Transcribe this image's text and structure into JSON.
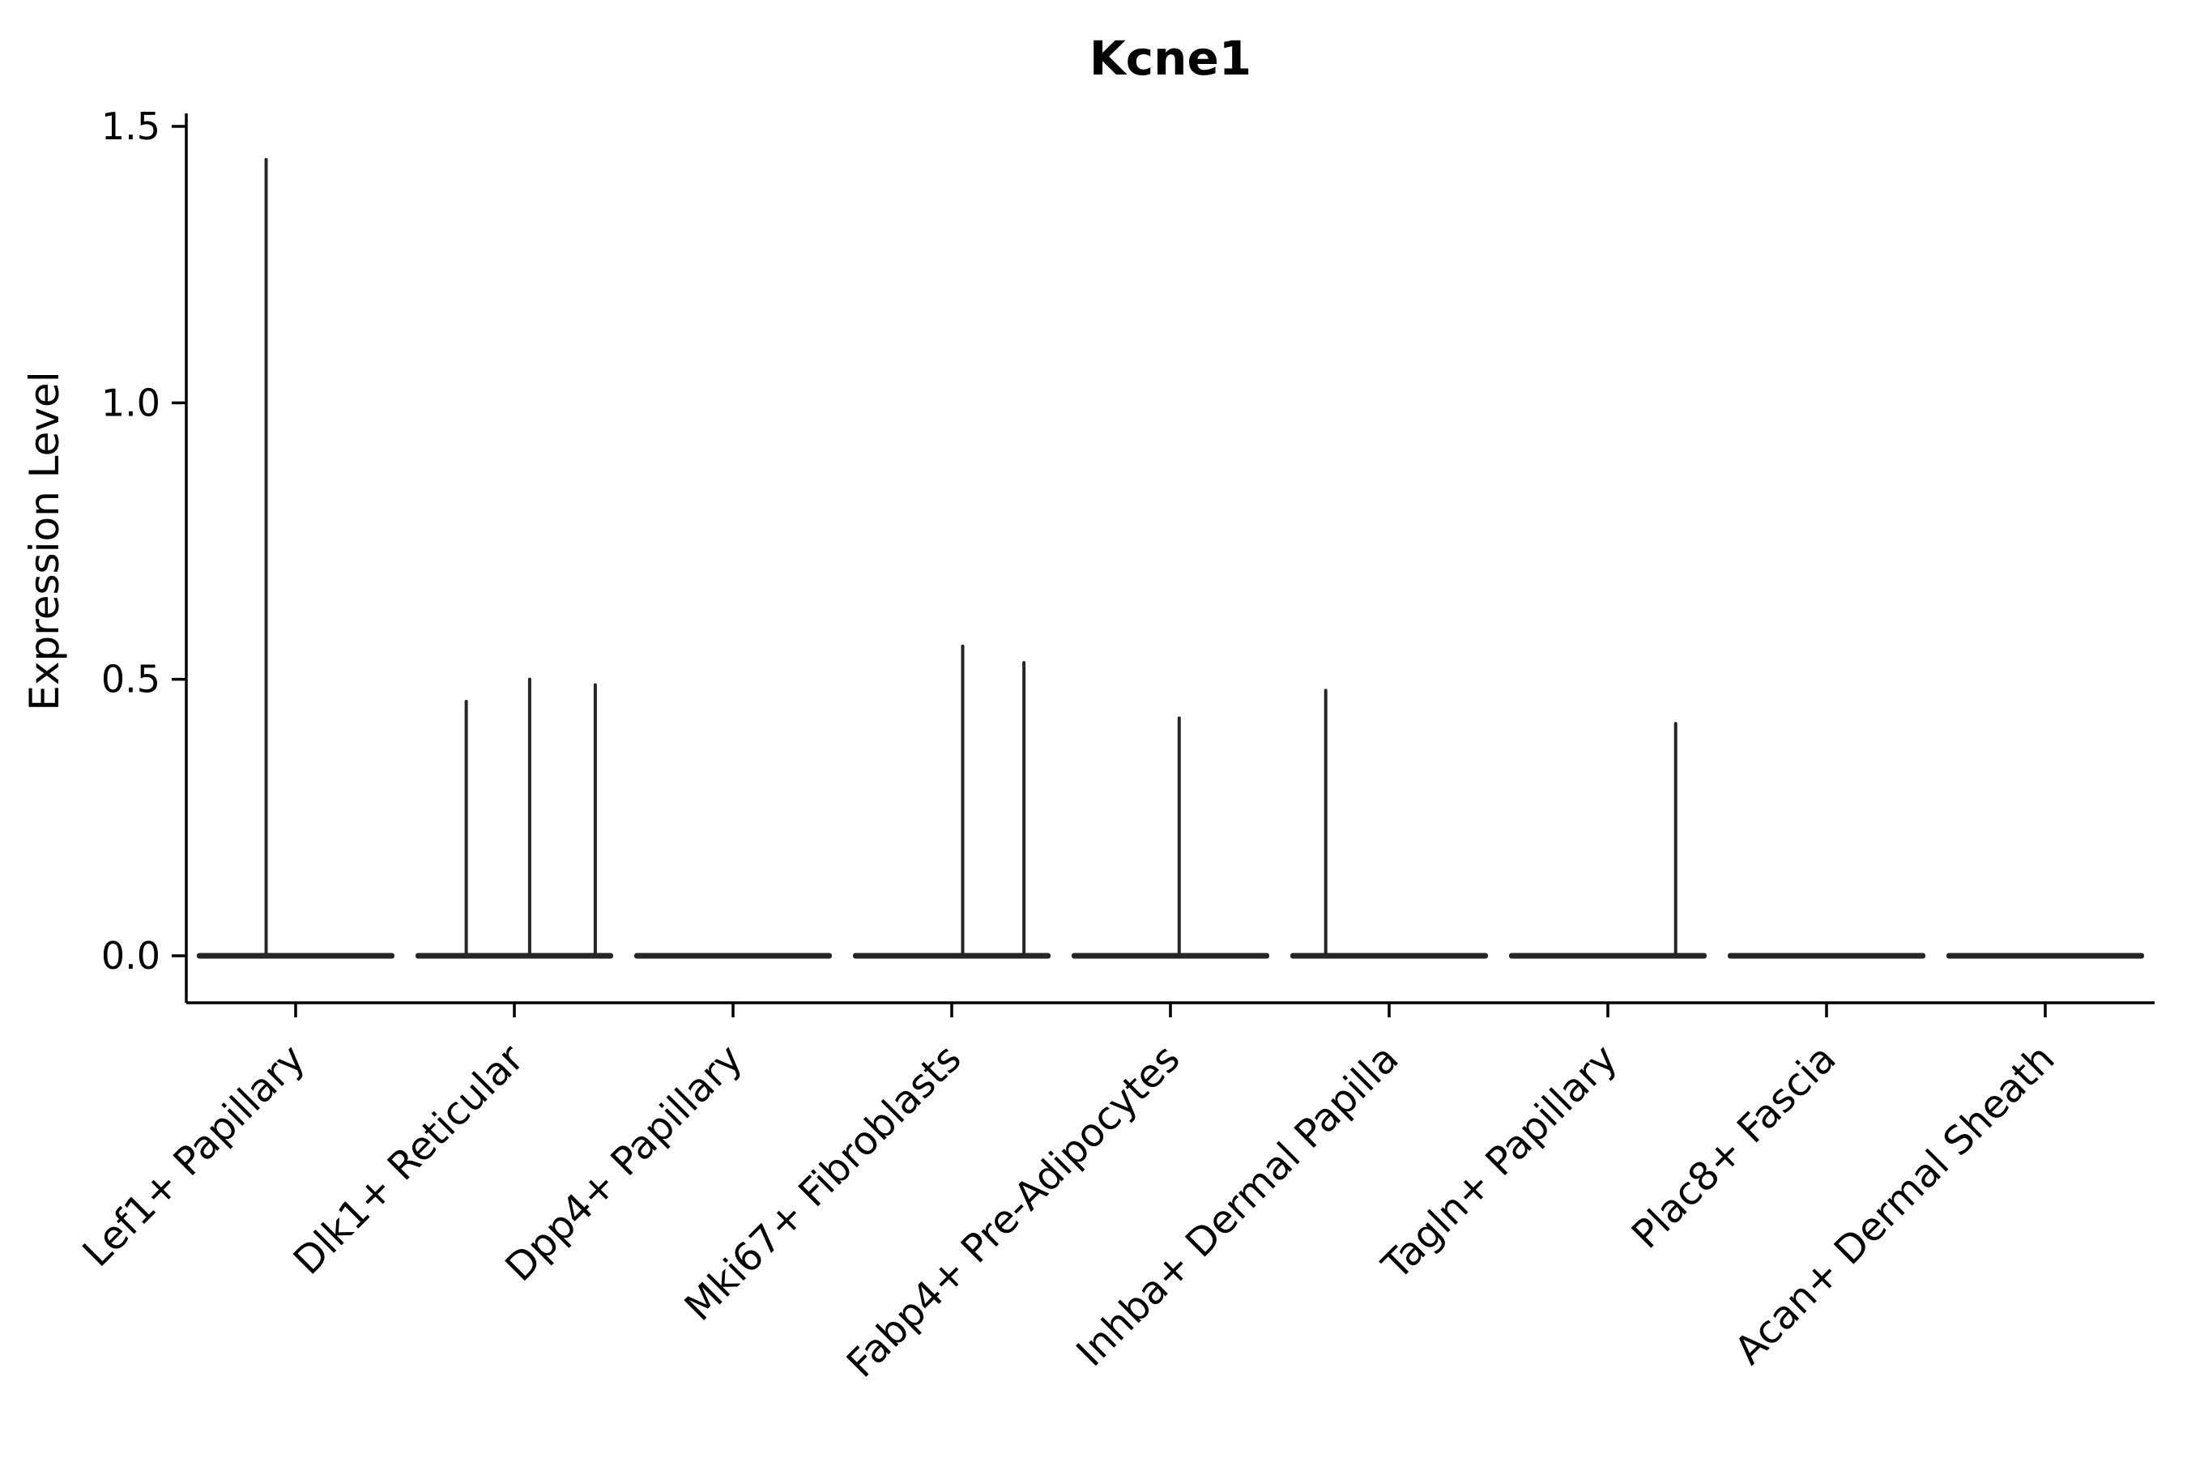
{
  "chart_data": {
    "type": "violin",
    "title": "Kcne1",
    "xlabel": "",
    "ylabel": "Expression Level",
    "ylim": [
      0,
      1.5
    ],
    "ytick_labels": [
      "0.0",
      "0.5",
      "1.0",
      "1.5"
    ],
    "ytick_values": [
      0,
      0.5,
      1.0,
      1.5
    ],
    "grid": false,
    "legend": "none",
    "categories": [
      "Lef1+ Papillary",
      "Dlk1+ Reticular",
      "Dpp4+ Papillary",
      "Mki67+ Fibroblasts",
      "Fabp4+ Pre-Adipocytes",
      "Inhba+ Dermal Papilla",
      "Tagln+ Papillary",
      "Plac8+ Fascia",
      "Acan+ Dermal Sheath"
    ],
    "violins": [
      {
        "category": "Lef1+ Papillary",
        "baseline": 0.0,
        "spikes": [
          {
            "offset": -0.135,
            "peak": 1.44
          }
        ]
      },
      {
        "category": "Dlk1+ Reticular",
        "baseline": 0.0,
        "spikes": [
          {
            "offset": -0.22,
            "peak": 0.46
          },
          {
            "offset": 0.07,
            "peak": 0.5
          },
          {
            "offset": 0.37,
            "peak": 0.49
          }
        ]
      },
      {
        "category": "Dpp4+ Papillary",
        "baseline": 0.0,
        "spikes": []
      },
      {
        "category": "Mki67+ Fibroblasts",
        "baseline": 0.0,
        "spikes": [
          {
            "offset": 0.05,
            "peak": 0.56
          },
          {
            "offset": 0.33,
            "peak": 0.53
          }
        ]
      },
      {
        "category": "Fabp4+ Pre-Adipocytes",
        "baseline": 0.0,
        "spikes": [
          {
            "offset": 0.04,
            "peak": 0.43
          }
        ]
      },
      {
        "category": "Inhba+ Dermal Papilla",
        "baseline": 0.0,
        "spikes": [
          {
            "offset": -0.29,
            "peak": 0.48
          }
        ]
      },
      {
        "category": "Tagln+ Papillary",
        "baseline": 0.0,
        "spikes": [
          {
            "offset": 0.31,
            "peak": 0.42
          }
        ]
      },
      {
        "category": "Plac8+ Fascia",
        "baseline": 0.0,
        "spikes": []
      },
      {
        "category": "Acan+ Dermal Sheath",
        "baseline": 0.0,
        "spikes": []
      }
    ],
    "style": {
      "violin_color": "#262626",
      "axis_color": "#000000",
      "text_color": "#000000",
      "background": "#ffffff"
    }
  }
}
